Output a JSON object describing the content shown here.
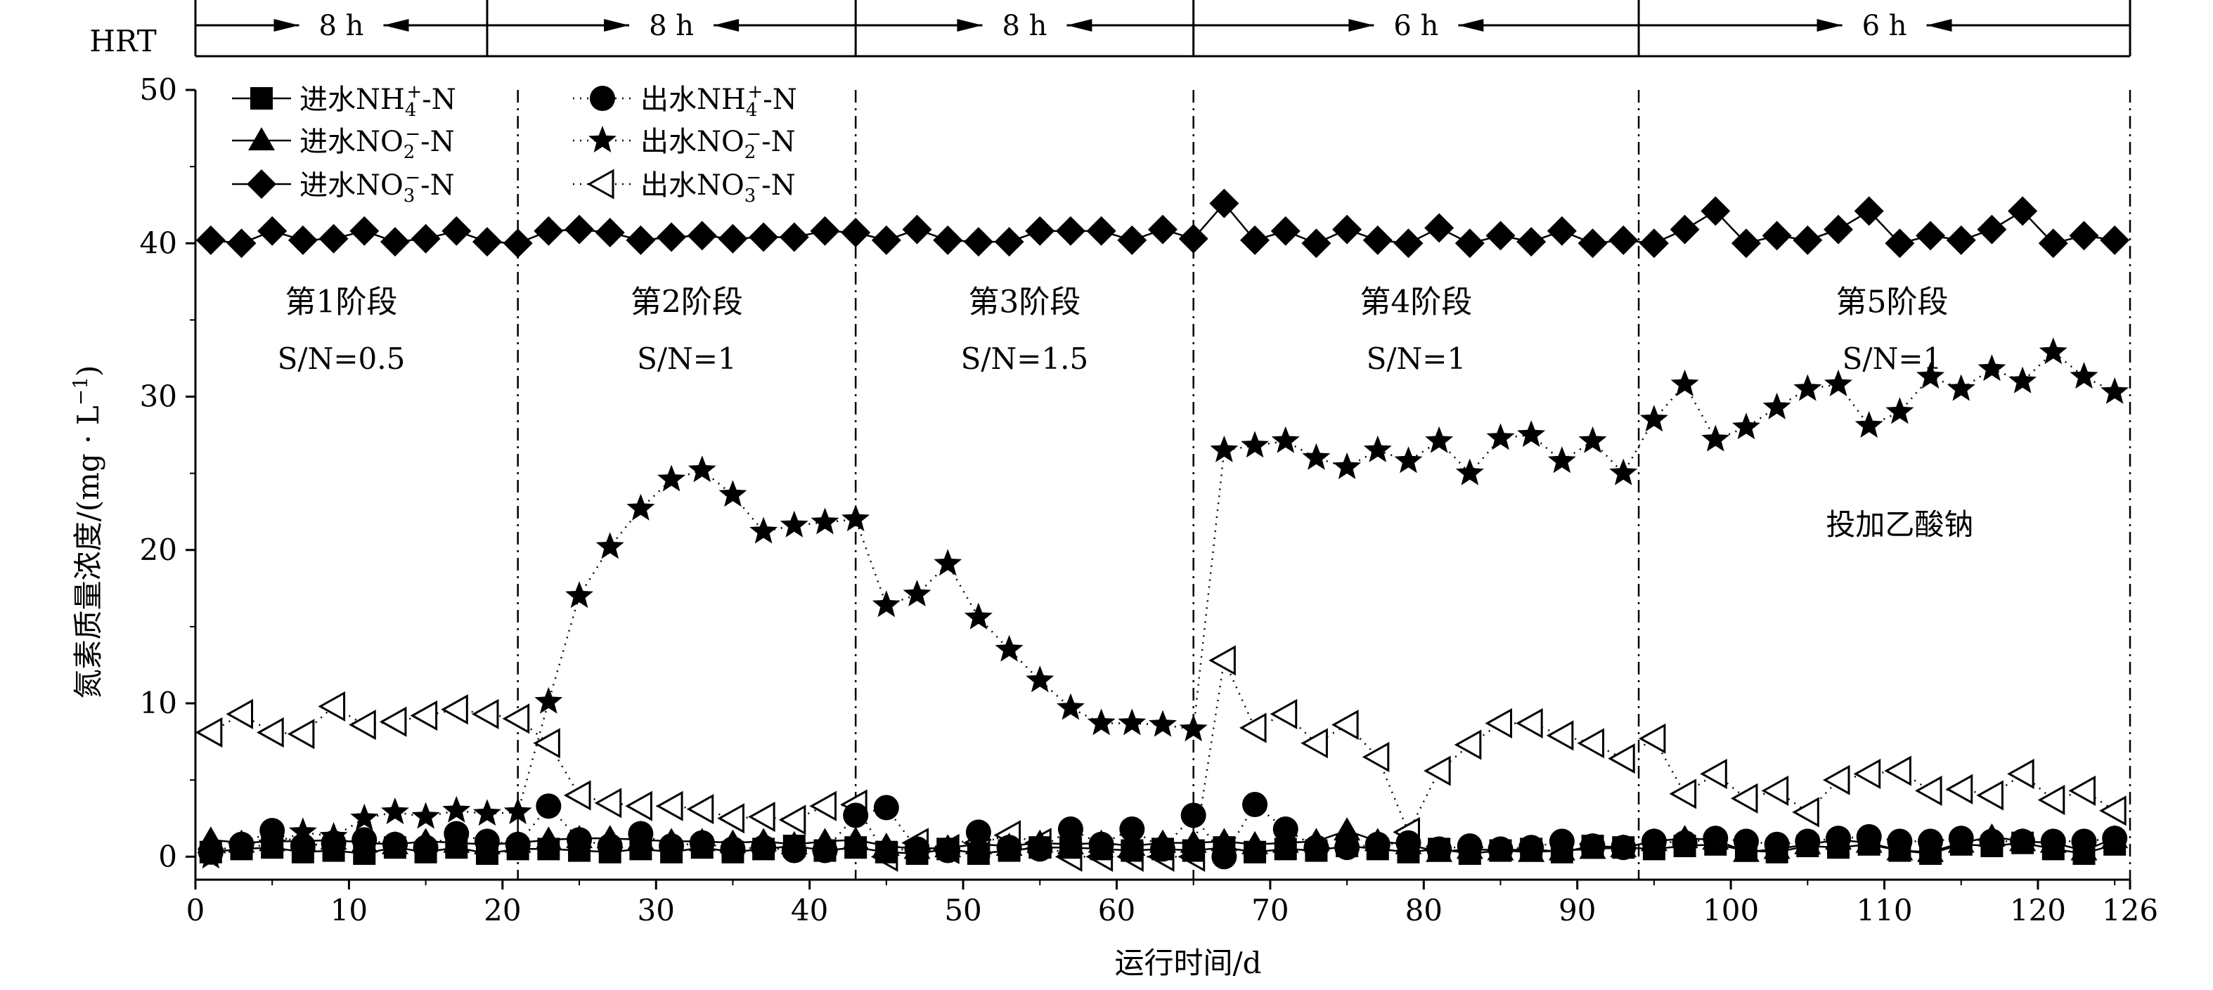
{
  "chart_data": {
    "type": "line",
    "xlabel": "运行时间/d",
    "ylabel": "氮素质量浓度/(mg · L",
    "ylabel_sup": "−1",
    "ylabel_close": ")",
    "xlim": [
      0,
      126
    ],
    "ylim": [
      -1.5,
      50
    ],
    "xticks": [
      0,
      10,
      20,
      30,
      40,
      50,
      60,
      70,
      80,
      90,
      100,
      110,
      120,
      126
    ],
    "yticks": [
      0,
      10,
      20,
      30,
      40,
      50
    ],
    "grid": false,
    "legend_position": "top-left",
    "hrt": {
      "label": "HRT",
      "segments": [
        {
          "x0": 0,
          "x1": 19,
          "label": "8 h"
        },
        {
          "x0": 19,
          "x1": 43,
          "label": "8 h"
        },
        {
          "x0": 43,
          "x1": 65,
          "label": "8 h"
        },
        {
          "x0": 65,
          "x1": 94,
          "label": "6 h"
        },
        {
          "x0": 94,
          "x1": 126,
          "label": "6 h"
        }
      ]
    },
    "phase_dividers": [
      21,
      43,
      65,
      94,
      126
    ],
    "phases": [
      {
        "x": 9.5,
        "title": "第1阶段",
        "sn": "S/N=0.5"
      },
      {
        "x": 32,
        "title": "第2阶段",
        "sn": "S/N=1"
      },
      {
        "x": 54,
        "title": "第3阶段",
        "sn": "S/N=1.5"
      },
      {
        "x": 79.5,
        "title": "第4阶段",
        "sn": "S/N=1"
      },
      {
        "x": 110.5,
        "title": "第5阶段",
        "sn": "S/N=1"
      }
    ],
    "annotation": {
      "x": 111,
      "y": 21,
      "text": "投加乙酸钠"
    },
    "series": [
      {
        "name": "进水NH₄⁺-N",
        "label_main": "进水NH",
        "label_sub": "4",
        "label_sup": "+",
        "label_tail": "-N",
        "marker": "square",
        "line": "solid",
        "x": [
          1,
          3,
          5,
          7,
          9,
          11,
          13,
          15,
          17,
          19,
          21,
          23,
          25,
          27,
          29,
          31,
          33,
          35,
          37,
          39,
          41,
          43,
          45,
          47,
          49,
          51,
          53,
          55,
          57,
          59,
          61,
          63,
          65,
          67,
          69,
          71,
          73,
          75,
          77,
          79,
          81,
          83,
          85,
          87,
          89,
          91,
          93,
          95,
          97,
          99,
          101,
          103,
          105,
          107,
          109,
          111,
          113,
          115,
          117,
          119,
          121,
          123,
          125
        ],
        "y": [
          0.3,
          0.5,
          0.6,
          0.3,
          0.4,
          0.2,
          0.6,
          0.3,
          0.6,
          0.2,
          0.5,
          0.5,
          0.4,
          0.3,
          0.5,
          0.3,
          0.6,
          0.3,
          0.5,
          0.7,
          0.4,
          0.6,
          0.3,
          0.2,
          0.5,
          0.2,
          0.4,
          0.6,
          0.6,
          0.5,
          0.4,
          0.5,
          0.4,
          0.6,
          0.3,
          0.5,
          0.4,
          0.7,
          0.5,
          0.3,
          0.5,
          0.2,
          0.4,
          0.5,
          0.3,
          0.7,
          0.6,
          0.5,
          0.7,
          0.8,
          0.4,
          0.3,
          0.7,
          0.6,
          0.8,
          0.4,
          0.2,
          0.8,
          0.7,
          0.9,
          0.5,
          0.2,
          0.8
        ]
      },
      {
        "name": "进水NO₂⁻-N",
        "label_main": "进水NO",
        "label_sub": "2",
        "label_sup": "−",
        "label_tail": "-N",
        "marker": "triangle",
        "line": "solid",
        "x": [
          1,
          3,
          5,
          7,
          9,
          11,
          13,
          15,
          17,
          19,
          21,
          23,
          25,
          27,
          29,
          31,
          33,
          35,
          37,
          39,
          41,
          43,
          45,
          47,
          49,
          51,
          53,
          55,
          57,
          59,
          61,
          63,
          65,
          67,
          69,
          71,
          73,
          75,
          77,
          79,
          81,
          83,
          85,
          87,
          89,
          91,
          93,
          95,
          97,
          99,
          101,
          103,
          105,
          107,
          109,
          111,
          113,
          115,
          117,
          119,
          121,
          123,
          125
        ],
        "y": [
          1.1,
          0.9,
          1.0,
          1.0,
          1.1,
          0.9,
          0.8,
          1.0,
          0.9,
          0.8,
          0.9,
          1.1,
          1.2,
          1.2,
          1.1,
          1.0,
          1.0,
          0.9,
          1.0,
          0.8,
          1.0,
          1.1,
          0.7,
          0.5,
          0.6,
          0.8,
          0.7,
          0.9,
          0.8,
          0.9,
          0.7,
          0.9,
          0.9,
          1.0,
          0.8,
          0.9,
          1.0,
          1.7,
          1.0,
          0.8,
          0.3,
          0.5,
          0.4,
          0.3,
          0.4,
          0.5,
          0.6,
          1.0,
          1.2,
          1.1,
          0.3,
          0.5,
          0.8,
          1.1,
          0.9,
          0.4,
          0.3,
          0.9,
          1.3,
          1.0,
          0.9,
          0.4,
          1.2
        ]
      },
      {
        "name": "进水NO₃⁻-N",
        "label_main": "进水NO",
        "label_sub": "3",
        "label_sup": "−",
        "label_tail": "-N",
        "marker": "diamond",
        "line": "solid",
        "x": [
          1,
          3,
          5,
          7,
          9,
          11,
          13,
          15,
          17,
          19,
          21,
          23,
          25,
          27,
          29,
          31,
          33,
          35,
          37,
          39,
          41,
          43,
          45,
          47,
          49,
          51,
          53,
          55,
          57,
          59,
          61,
          63,
          65,
          67,
          69,
          71,
          73,
          75,
          77,
          79,
          81,
          83,
          85,
          87,
          89,
          91,
          93,
          95,
          97,
          99,
          101,
          103,
          105,
          107,
          109,
          111,
          113,
          115,
          117,
          119,
          121,
          123,
          125
        ],
        "y": [
          40.2,
          40.0,
          40.8,
          40.2,
          40.3,
          40.8,
          40.1,
          40.3,
          40.8,
          40.1,
          40.0,
          40.8,
          40.9,
          40.7,
          40.2,
          40.4,
          40.5,
          40.3,
          40.4,
          40.4,
          40.8,
          40.7,
          40.2,
          40.9,
          40.2,
          40.1,
          40.1,
          40.8,
          40.8,
          40.8,
          40.2,
          40.9,
          40.3,
          42.6,
          40.2,
          40.8,
          40.0,
          40.9,
          40.2,
          40.0,
          41.0,
          40.0,
          40.5,
          40.1,
          40.8,
          40.0,
          40.2,
          40.0,
          40.9,
          42.1,
          40.0,
          40.5,
          40.2,
          40.9,
          42.1,
          40.0,
          40.5,
          40.2,
          40.9,
          42.1,
          40.0,
          40.5,
          40.2
        ]
      },
      {
        "name": "出水NH₄⁺-N",
        "label_main": "出水NH",
        "label_sub": "4",
        "label_sup": "+",
        "label_tail": "-N",
        "marker": "circle",
        "line": "dotted",
        "x": [
          1,
          3,
          5,
          7,
          9,
          11,
          13,
          15,
          17,
          19,
          21,
          23,
          25,
          27,
          29,
          31,
          33,
          35,
          37,
          39,
          41,
          43,
          45,
          47,
          49,
          51,
          53,
          55,
          57,
          59,
          61,
          63,
          65,
          67,
          69,
          71,
          73,
          75,
          77,
          79,
          81,
          83,
          85,
          87,
          89,
          91,
          93,
          95,
          97,
          99,
          101,
          103,
          105,
          107,
          109,
          111,
          113,
          115,
          117,
          119,
          121,
          123,
          125
        ],
        "y": [
          0.3,
          0.8,
          1.7,
          0.7,
          0.9,
          1.1,
          0.8,
          0.6,
          1.5,
          1.0,
          0.8,
          3.3,
          1.1,
          0.7,
          1.5,
          0.7,
          0.9,
          0.5,
          0.6,
          0.4,
          0.4,
          2.7,
          3.2,
          0.5,
          0.4,
          1.6,
          0.6,
          0.5,
          1.8,
          0.8,
          1.8,
          0.5,
          2.7,
          0.0,
          3.4,
          1.8,
          0.6,
          0.6,
          0.8,
          0.9,
          0.5,
          0.7,
          0.5,
          0.6,
          1.0,
          0.7,
          0.6,
          1.0,
          0.9,
          1.2,
          1.0,
          0.8,
          1.0,
          1.2,
          1.3,
          1.0,
          1.0,
          1.2,
          1.0,
          1.0,
          1.0,
          1.0,
          1.2
        ]
      },
      {
        "name": "出水NO₂⁻-N",
        "label_main": "出水NO",
        "label_sub": "2",
        "label_sup": "−",
        "label_tail": "-N",
        "marker": "star",
        "line": "dotted",
        "x": [
          1,
          3,
          5,
          7,
          9,
          11,
          13,
          15,
          17,
          19,
          21,
          23,
          25,
          27,
          29,
          31,
          33,
          35,
          37,
          39,
          41,
          43,
          45,
          47,
          49,
          51,
          53,
          55,
          57,
          59,
          61,
          63,
          65,
          67,
          69,
          71,
          73,
          75,
          77,
          79,
          81,
          83,
          85,
          87,
          89,
          91,
          93,
          95,
          97,
          99,
          101,
          103,
          105,
          107,
          109,
          111,
          113,
          115,
          117,
          119,
          121,
          123,
          125
        ],
        "y": [
          0.0,
          0.6,
          0.8,
          1.6,
          1.3,
          2.5,
          2.9,
          2.6,
          3.0,
          2.8,
          2.9,
          10.1,
          17.0,
          20.2,
          22.7,
          24.6,
          25.2,
          23.6,
          21.2,
          21.6,
          21.8,
          22.0,
          16.4,
          17.1,
          19.1,
          15.6,
          13.5,
          11.5,
          9.7,
          8.7,
          8.7,
          8.6,
          8.3,
          26.5,
          26.8,
          27.1,
          26.0,
          25.4,
          26.5,
          25.8,
          27.1,
          25.0,
          27.3,
          27.5,
          25.8,
          27.1,
          25.0,
          28.5,
          30.8,
          27.2,
          28.0,
          29.3,
          30.5,
          30.8,
          28.1,
          29.0,
          31.3,
          30.5,
          31.8,
          31.0,
          32.9,
          31.3,
          30.3
        ]
      },
      {
        "name": "出水NO₃⁻-N",
        "label_main": "出水NO",
        "label_sub": "3",
        "label_sup": "−",
        "label_tail": "-N",
        "marker": "tri-left-open",
        "line": "dotted",
        "x": [
          1,
          3,
          5,
          7,
          9,
          11,
          13,
          15,
          17,
          19,
          21,
          23,
          25,
          27,
          29,
          31,
          33,
          35,
          37,
          39,
          41,
          43,
          45,
          47,
          49,
          51,
          53,
          55,
          57,
          59,
          61,
          63,
          65,
          67,
          69,
          71,
          73,
          75,
          77,
          79,
          81,
          83,
          85,
          87,
          89,
          91,
          93,
          95,
          97,
          99,
          101,
          103,
          105,
          107,
          109,
          111,
          113,
          115,
          117,
          119,
          121,
          123,
          125
        ],
        "y": [
          8.1,
          9.3,
          8.1,
          8.0,
          9.8,
          8.6,
          8.8,
          9.2,
          9.6,
          9.3,
          9.0,
          7.4,
          4.0,
          3.5,
          3.3,
          3.3,
          3.1,
          2.5,
          2.6,
          2.4,
          3.3,
          3.4,
          0.0,
          0.9,
          0.5,
          0.9,
          1.4,
          0.9,
          0.0,
          0.0,
          0.0,
          0.0,
          0.0,
          12.8,
          8.4,
          9.3,
          7.4,
          8.6,
          6.5,
          1.6,
          5.6,
          7.3,
          8.7,
          8.7,
          7.9,
          7.4,
          6.4,
          7.7,
          4.1,
          5.4,
          3.8,
          4.3,
          2.9,
          5.0,
          5.4,
          5.6,
          4.3,
          4.4,
          4.0,
          5.4,
          3.7,
          4.3,
          3.0
        ]
      }
    ]
  }
}
